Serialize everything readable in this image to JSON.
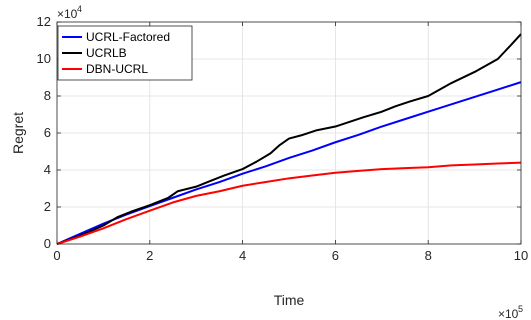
{
  "chart_data": {
    "type": "line",
    "xlabel": "Time",
    "ylabel": "Regret",
    "x_multiplier_base": "×10",
    "x_multiplier_exp": "5",
    "y_multiplier_base": "×10",
    "y_multiplier_exp": "4",
    "xlim": [
      0,
      10
    ],
    "ylim": [
      0,
      12
    ],
    "xticks": [
      0,
      2,
      4,
      6,
      8,
      10
    ],
    "yticks": [
      0,
      2,
      4,
      6,
      8,
      10,
      12
    ],
    "xtick_labels": [
      "0",
      "2",
      "4",
      "6",
      "8",
      "10"
    ],
    "ytick_labels": [
      "0",
      "2",
      "4",
      "6",
      "8",
      "10",
      "12"
    ],
    "grid": true,
    "legend_position": "top-left",
    "series": [
      {
        "name": "UCRL-Factored",
        "color": "#0000ff",
        "x": [
          0,
          0.5,
          1,
          1.5,
          2,
          2.5,
          3,
          3.5,
          4,
          4.5,
          5,
          5.5,
          6,
          6.5,
          7,
          7.5,
          8,
          8.5,
          9,
          9.5,
          10
        ],
        "y": [
          0,
          0.55,
          1.1,
          1.6,
          2.05,
          2.5,
          2.95,
          3.35,
          3.8,
          4.2,
          4.65,
          5.05,
          5.5,
          5.9,
          6.35,
          6.75,
          7.15,
          7.55,
          7.95,
          8.35,
          8.75
        ]
      },
      {
        "name": "UCRLB",
        "color": "#000000",
        "x": [
          0,
          0.5,
          1,
          1.3,
          1.6,
          2,
          2.4,
          2.6,
          3,
          3.3,
          3.6,
          4,
          4.3,
          4.6,
          4.8,
          5,
          5.3,
          5.6,
          6,
          6.3,
          6.6,
          7,
          7.3,
          7.6,
          8,
          8.5,
          9,
          9.5,
          9.8,
          10
        ],
        "y": [
          0,
          0.45,
          1,
          1.45,
          1.75,
          2.1,
          2.5,
          2.85,
          3.1,
          3.4,
          3.7,
          4.05,
          4.45,
          4.9,
          5.35,
          5.7,
          5.9,
          6.15,
          6.35,
          6.6,
          6.85,
          7.15,
          7.45,
          7.7,
          8.0,
          8.7,
          9.3,
          10.0,
          10.8,
          11.35
        ]
      },
      {
        "name": "DBN-UCRL",
        "color": "#ff0000",
        "x": [
          0,
          0.5,
          1,
          1.5,
          2,
          2.5,
          3,
          3.5,
          4,
          4.5,
          5,
          5.5,
          6,
          6.5,
          7,
          7.5,
          8,
          8.5,
          9,
          9.5,
          10
        ],
        "y": [
          0,
          0.4,
          0.85,
          1.35,
          1.8,
          2.25,
          2.6,
          2.85,
          3.15,
          3.35,
          3.55,
          3.7,
          3.85,
          3.95,
          4.05,
          4.1,
          4.15,
          4.25,
          4.3,
          4.35,
          4.4
        ]
      }
    ]
  }
}
